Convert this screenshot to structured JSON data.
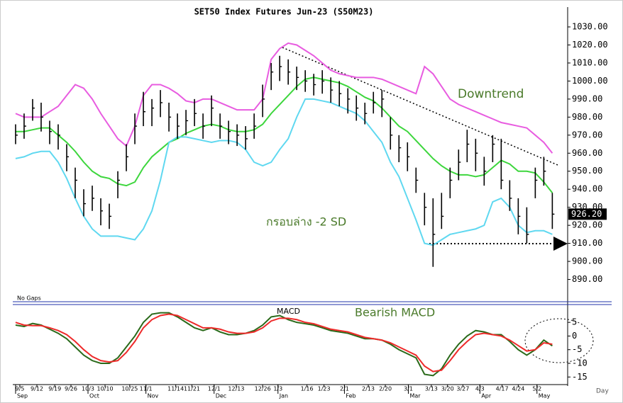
{
  "chart_data": [
    {
      "type": "hlc",
      "title": "SET50 Index Futures Jun-23 (S50M23)",
      "color": "#000000",
      "high": [
        976,
        982,
        990,
        988,
        978,
        976,
        965,
        952,
        940,
        942,
        935,
        932,
        950,
        965,
        982,
        994,
        990,
        995,
        988,
        982,
        984,
        990,
        982,
        992,
        982,
        978,
        976,
        975,
        982,
        998,
        1010,
        1014,
        1012,
        1008,
        1006,
        1004,
        1006,
        1002,
        1000,
        996,
        992,
        988,
        994,
        995,
        980,
        970,
        966,
        952,
        938,
        935,
        938,
        952,
        962,
        973,
        968,
        958,
        970,
        968,
        945,
        935,
        930,
        952,
        958,
        938
      ],
      "low": [
        965,
        968,
        978,
        972,
        965,
        962,
        950,
        935,
        925,
        928,
        920,
        918,
        935,
        950,
        965,
        975,
        975,
        980,
        972,
        968,
        970,
        975,
        968,
        975,
        968,
        965,
        964,
        962,
        968,
        980,
        995,
        1000,
        998,
        995,
        994,
        992,
        993,
        988,
        986,
        982,
        978,
        976,
        982,
        980,
        962,
        955,
        950,
        938,
        920,
        897,
        918,
        935,
        945,
        955,
        950,
        942,
        955,
        940,
        928,
        915,
        910,
        935,
        942,
        918
      ],
      "close": [
        970,
        975,
        985,
        980,
        972,
        970,
        958,
        945,
        932,
        935,
        928,
        925,
        945,
        958,
        975,
        983,
        985,
        988,
        980,
        975,
        978,
        982,
        975,
        985,
        975,
        972,
        970,
        968,
        975,
        990,
        1005,
        1008,
        1005,
        1002,
        1000,
        998,
        1000,
        995,
        993,
        990,
        985,
        982,
        988,
        990,
        970,
        963,
        958,
        945,
        930,
        915,
        925,
        945,
        955,
        965,
        960,
        950,
        965,
        945,
        935,
        925,
        915,
        945,
        950,
        926.2
      ],
      "lines": [
        {
          "color": "#e85ce0",
          "values": [
            982,
            980,
            980,
            980,
            983,
            986,
            992,
            998,
            996,
            990,
            982,
            975,
            968,
            964,
            975,
            992,
            998,
            998,
            996,
            993,
            989,
            988,
            990,
            990,
            988,
            986,
            984,
            984,
            984,
            990,
            1012,
            1018,
            1021,
            1020,
            1017,
            1014,
            1010,
            1006,
            1004,
            1003,
            1002,
            1002,
            1002,
            1001,
            999,
            997,
            995,
            993,
            1008,
            1004,
            997,
            990,
            987,
            985,
            983,
            981,
            979,
            977,
            976,
            975,
            974,
            970,
            966,
            960
          ]
        },
        {
          "color": "#3dd63d",
          "values": [
            972,
            972,
            973,
            974,
            974,
            970,
            966,
            961,
            955,
            950,
            947,
            946,
            943,
            942,
            944,
            952,
            958,
            962,
            966,
            968,
            971,
            973,
            975,
            976,
            975,
            973,
            972,
            972,
            973,
            976,
            982,
            987,
            992,
            997,
            1001,
            1002,
            1001,
            1000,
            999,
            997,
            994,
            991,
            989,
            985,
            980,
            975,
            972,
            967,
            962,
            957,
            953,
            950,
            948,
            948,
            947,
            948,
            952,
            956,
            954,
            950,
            950,
            949,
            944,
            938
          ]
        },
        {
          "color": "#5fd8f0",
          "values": [
            957,
            958,
            960,
            961,
            961,
            955,
            946,
            935,
            925,
            918,
            914,
            914,
            914,
            913,
            912,
            918,
            928,
            945,
            966,
            969,
            969,
            968,
            967,
            966,
            967,
            967,
            966,
            962,
            955,
            953,
            955,
            962,
            968,
            980,
            990,
            990,
            989,
            988,
            986,
            984,
            982,
            978,
            972,
            966,
            955,
            947,
            935,
            923,
            910,
            909,
            912,
            915,
            916,
            917,
            918,
            920,
            933,
            935,
            930,
            920,
            916,
            917,
            917,
            915
          ]
        }
      ],
      "xlim": [
        -0.33,
        64.8
      ],
      "ylim": [
        880,
        1041
      ],
      "yticks": [
        {
          "value": 890,
          "label": "890.00"
        },
        {
          "value": 900,
          "label": "900.00"
        },
        {
          "value": 910,
          "label": "910.00"
        },
        {
          "value": 920,
          "label": "920.00"
        },
        {
          "value": 930,
          "label": "930.00"
        },
        {
          "value": 940,
          "label": "940.00"
        },
        {
          "value": 950,
          "label": "950.00"
        },
        {
          "value": 960,
          "label": "960.00"
        },
        {
          "value": 970,
          "label": "970.00"
        },
        {
          "value": 980,
          "label": "980.00"
        },
        {
          "value": 990,
          "label": "990.00"
        },
        {
          "value": 1000,
          "label": "1000.00"
        },
        {
          "value": 1010,
          "label": "1010.00"
        },
        {
          "value": 1020,
          "label": "1020.00"
        },
        {
          "value": 1030,
          "label": "1030.00"
        }
      ],
      "last_price": {
        "value": 926.2,
        "label": "926.20"
      },
      "annotations": [
        "Downtrend",
        "กรอบล่าง -2 SD"
      ],
      "note": "No Gaps"
    },
    {
      "type": "line",
      "title": "MACD",
      "series": [
        {
          "color": "#2a6a1a",
          "values": [
            4,
            3.5,
            4.6,
            4,
            2.5,
            1,
            -1,
            -4,
            -7,
            -9,
            -10,
            -10,
            -8,
            -4,
            0,
            5,
            8,
            8.5,
            8.5,
            7,
            5,
            3,
            2,
            3,
            1.5,
            0.5,
            0.5,
            1,
            2,
            4,
            7,
            7.5,
            6,
            5,
            4.5,
            4,
            3,
            2,
            1.5,
            1,
            0,
            -1,
            -1,
            -1.5,
            -3,
            -5,
            -6.5,
            -8,
            -14,
            -14.5,
            -12,
            -7,
            -3,
            0,
            2,
            1.5,
            0.5,
            0.5,
            -2,
            -5,
            -7,
            -5,
            -1.5,
            -3.6
          ]
        },
        {
          "color": "#ee2a2a",
          "values": [
            5,
            4,
            3.8,
            3.8,
            3,
            2,
            0.5,
            -2,
            -5,
            -7.5,
            -9,
            -9.5,
            -9,
            -6,
            -2,
            3,
            6,
            7.5,
            8,
            7.5,
            6,
            4.5,
            3,
            3,
            2.5,
            1.5,
            1,
            1,
            1.5,
            3,
            5.5,
            6.5,
            6.5,
            6,
            5,
            4.5,
            3.5,
            2.5,
            2,
            1.5,
            0.5,
            -0.5,
            -1,
            -1.5,
            -2.5,
            -4,
            -5.5,
            -7,
            -11,
            -13,
            -12.5,
            -9,
            -5,
            -2,
            0.5,
            1,
            0.5,
            0,
            -1.5,
            -3.5,
            -5.5,
            -5,
            -2.5,
            -3
          ]
        }
      ],
      "xlim": [
        -0.33,
        64.8
      ],
      "ylim": [
        -17,
        11
      ],
      "yticks": [
        5,
        0,
        -5,
        -10,
        -15
      ],
      "xticks": [
        {
          "value": 0.5,
          "label": "9/5"
        },
        {
          "value": 2.5,
          "label": "9/12"
        },
        {
          "value": 4.6,
          "label": "9/19"
        },
        {
          "value": 6.5,
          "label": "9/26"
        },
        {
          "value": 8.5,
          "label": "10/3"
        },
        {
          "value": 10.5,
          "label": "10/10"
        },
        {
          "value": 13.4,
          "label": "10/25"
        },
        {
          "value": 15.3,
          "label": "11/1"
        },
        {
          "value": 18.8,
          "label": "11/14"
        },
        {
          "value": 20.7,
          "label": "11/21"
        },
        {
          "value": 23.3,
          "label": "12/1"
        },
        {
          "value": 25.9,
          "label": "12/13"
        },
        {
          "value": 29,
          "label": "12/26"
        },
        {
          "value": 30.8,
          "label": "1/3"
        },
        {
          "value": 34.2,
          "label": "1/16"
        },
        {
          "value": 36.2,
          "label": "1/23"
        },
        {
          "value": 38.6,
          "label": "2/1"
        },
        {
          "value": 41.4,
          "label": "2/13"
        },
        {
          "value": 43.4,
          "label": "2/20"
        },
        {
          "value": 46.1,
          "label": "3/1"
        },
        {
          "value": 48.8,
          "label": "3/13"
        },
        {
          "value": 50.7,
          "label": "3/20"
        },
        {
          "value": 52.5,
          "label": "3/27"
        },
        {
          "value": 54.5,
          "label": "4/3"
        },
        {
          "value": 57.1,
          "label": "4/17"
        },
        {
          "value": 59,
          "label": "4/24"
        },
        {
          "value": 61.2,
          "label": "5/2"
        }
      ],
      "month_ticks": [
        {
          "value": 0,
          "label": "Sep"
        },
        {
          "value": 8.5,
          "label": "Oct"
        },
        {
          "value": 15.3,
          "label": "Nov"
        },
        {
          "value": 23.3,
          "label": "Dec"
        },
        {
          "value": 30.8,
          "label": "Jan"
        },
        {
          "value": 38.6,
          "label": "Feb"
        },
        {
          "value": 46.1,
          "label": "Mar"
        },
        {
          "value": 54.5,
          "label": "Apr"
        },
        {
          "value": 61.2,
          "label": "May"
        }
      ],
      "xlabel": "Day",
      "annotation": "Bearish MACD"
    }
  ]
}
